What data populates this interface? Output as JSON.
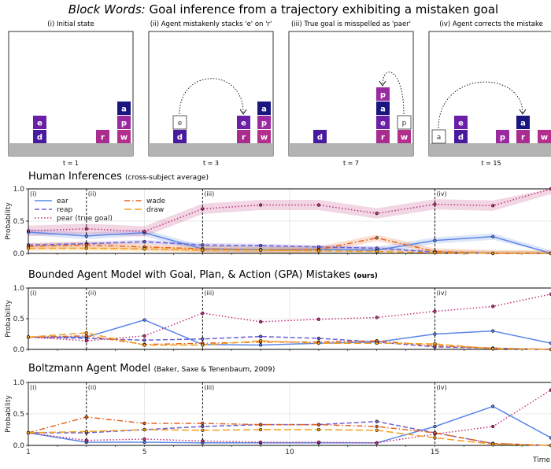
{
  "figure": {
    "title_italic": "Block Words:",
    "title_rest": " Goal inference from a trajectory exhibiting a mistaken goal"
  },
  "panels": [
    {
      "caption": "(i) Initial state",
      "time_label": "t = 1"
    },
    {
      "caption": "(ii) Agent mistakenly stacks 'e' on 'r'",
      "time_label": "t = 3"
    },
    {
      "caption": "(iii) True goal is misspelled as 'paer'",
      "time_label": "t = 7"
    },
    {
      "caption": "(iv) Agent corrects the mistake",
      "time_label": "t = 15"
    }
  ],
  "block_colors": {
    "e": "#6a1fa6",
    "d": "#4a1a9e",
    "a": "#1a1680",
    "p": "#9b2aa0",
    "w": "#b42e8e",
    "r": "#a82d8e"
  },
  "chart_data": [
    {
      "type": "line",
      "title": "Human Inferences",
      "subtitle": "(cross-subject average)",
      "ylabel": "Probability",
      "xlim": [
        1,
        19
      ],
      "ylim": [
        0,
        1
      ],
      "yticks": [
        0.0,
        0.5,
        1.0
      ],
      "phases": [
        {
          "x": 1,
          "label": "(i)"
        },
        {
          "x": 3,
          "label": "(ii)"
        },
        {
          "x": 7,
          "label": "(iii)"
        },
        {
          "x": 15,
          "label": "(iv)"
        }
      ],
      "grid": true,
      "legend": "top-left",
      "x": [
        1,
        3,
        5,
        7,
        9,
        11,
        13,
        15,
        17,
        19
      ],
      "series": [
        {
          "name": "ear",
          "color": "#5a86e8",
          "dash": "solid",
          "values": [
            0.33,
            0.27,
            0.32,
            0.07,
            0.06,
            0.06,
            0.05,
            0.2,
            0.26,
            0.0
          ]
        },
        {
          "name": "reap",
          "color": "#6b5fd6",
          "dash": "dash",
          "values": [
            0.13,
            0.15,
            0.18,
            0.13,
            0.12,
            0.1,
            0.08,
            0.02,
            0.0,
            0.0
          ]
        },
        {
          "name": "pear (true goal)",
          "color": "#c0307a",
          "dash": "dot",
          "values": [
            0.35,
            0.38,
            0.34,
            0.69,
            0.75,
            0.75,
            0.62,
            0.76,
            0.74,
            1.0
          ]
        },
        {
          "name": "wade",
          "color": "#e8641e",
          "dash": "dashdot",
          "values": [
            0.11,
            0.13,
            0.1,
            0.07,
            0.05,
            0.06,
            0.24,
            0.03,
            0.0,
            0.0
          ]
        },
        {
          "name": "draw",
          "color": "#f0a020",
          "dash": "longdash",
          "values": [
            0.08,
            0.08,
            0.07,
            0.05,
            0.05,
            0.04,
            0.03,
            0.01,
            0.0,
            0.0
          ]
        }
      ]
    },
    {
      "type": "line",
      "title": "Bounded Agent Model with Goal, Plan, & Action (GPA) Mistakes",
      "subtitle": "(ours)",
      "ylabel": "Probability",
      "xlim": [
        1,
        19
      ],
      "ylim": [
        0,
        1
      ],
      "yticks": [
        0.0,
        0.5,
        1.0
      ],
      "phases": [
        {
          "x": 1,
          "label": "(i)"
        },
        {
          "x": 3,
          "label": "(ii)"
        },
        {
          "x": 7,
          "label": "(iii)"
        },
        {
          "x": 15,
          "label": "(iv)"
        }
      ],
      "grid": true,
      "x": [
        1,
        3,
        5,
        7,
        9,
        11,
        13,
        15,
        17,
        19
      ],
      "series": [
        {
          "name": "ear",
          "color": "#5a86e8",
          "dash": "solid",
          "values": [
            0.2,
            0.2,
            0.48,
            0.08,
            0.07,
            0.1,
            0.12,
            0.25,
            0.3,
            0.1
          ]
        },
        {
          "name": "reap",
          "color": "#6b5fd6",
          "dash": "dash",
          "values": [
            0.2,
            0.18,
            0.15,
            0.17,
            0.21,
            0.18,
            0.12,
            0.04,
            0.02,
            0.0
          ]
        },
        {
          "name": "pear (true goal)",
          "color": "#c0307a",
          "dash": "dot",
          "values": [
            0.2,
            0.14,
            0.22,
            0.59,
            0.45,
            0.49,
            0.52,
            0.62,
            0.7,
            0.9
          ]
        },
        {
          "name": "wade",
          "color": "#e8641e",
          "dash": "dashdot",
          "values": [
            0.2,
            0.22,
            0.08,
            0.1,
            0.12,
            0.12,
            0.14,
            0.06,
            0.02,
            0.0
          ]
        },
        {
          "name": "draw",
          "color": "#f0a020",
          "dash": "longdash",
          "values": [
            0.2,
            0.27,
            0.07,
            0.07,
            0.14,
            0.1,
            0.1,
            0.09,
            0.01,
            0.0
          ]
        }
      ]
    },
    {
      "type": "line",
      "title": "Boltzmann Agent Model",
      "subtitle": "(Baker, Saxe & Tenenbaum, 2009)",
      "ylabel": "Probability",
      "xlabel": "Time",
      "xlim": [
        1,
        19
      ],
      "ylim": [
        0,
        1
      ],
      "yticks": [
        0.0,
        0.5,
        1.0
      ],
      "xticks": [
        1,
        5,
        10,
        15
      ],
      "phases": [
        {
          "x": 1,
          "label": "(i)"
        },
        {
          "x": 3,
          "label": "(ii)"
        },
        {
          "x": 7,
          "label": "(iii)"
        },
        {
          "x": 15,
          "label": "(iv)"
        }
      ],
      "grid": true,
      "x": [
        1,
        3,
        5,
        7,
        9,
        11,
        13,
        15,
        17,
        19
      ],
      "series": [
        {
          "name": "ear",
          "color": "#5a86e8",
          "dash": "solid",
          "values": [
            0.2,
            0.05,
            0.05,
            0.04,
            0.04,
            0.04,
            0.04,
            0.3,
            0.62,
            0.12
          ]
        },
        {
          "name": "reap",
          "color": "#6b5fd6",
          "dash": "dash",
          "values": [
            0.2,
            0.2,
            0.25,
            0.3,
            0.33,
            0.33,
            0.38,
            0.2,
            0.03,
            0.0
          ]
        },
        {
          "name": "pear (true goal)",
          "color": "#c0307a",
          "dash": "dot",
          "values": [
            0.2,
            0.08,
            0.1,
            0.07,
            0.05,
            0.05,
            0.04,
            0.18,
            0.3,
            0.88
          ]
        },
        {
          "name": "wade",
          "color": "#e8641e",
          "dash": "dashdot",
          "values": [
            0.2,
            0.45,
            0.35,
            0.35,
            0.33,
            0.33,
            0.3,
            0.2,
            0.03,
            0.0
          ]
        },
        {
          "name": "draw",
          "color": "#f0a020",
          "dash": "longdash",
          "values": [
            0.2,
            0.22,
            0.25,
            0.24,
            0.25,
            0.25,
            0.24,
            0.12,
            0.02,
            0.0
          ]
        }
      ]
    }
  ]
}
